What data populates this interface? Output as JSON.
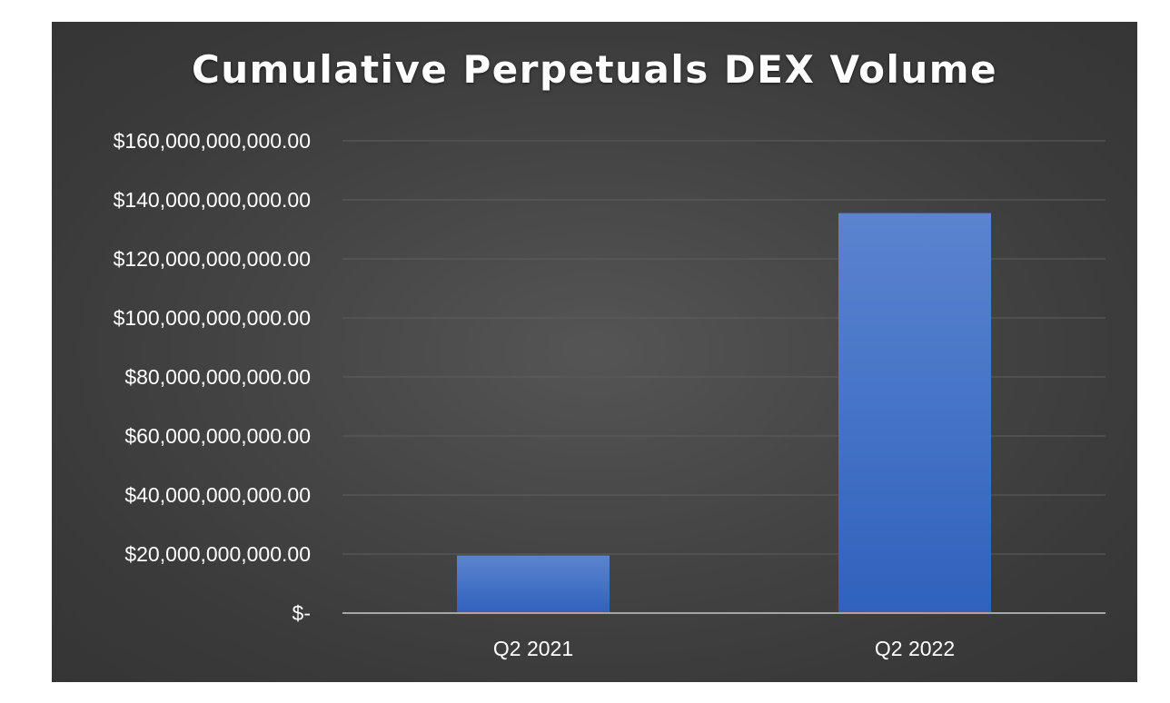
{
  "chart_data": {
    "type": "bar",
    "title": "Cumulative Perpetuals DEX Volume",
    "xlabel": "",
    "ylabel": "",
    "categories": [
      "Q2 2021",
      "Q2 2022"
    ],
    "values": [
      19500000000,
      135500000000
    ],
    "ylim": [
      0,
      160000000000
    ],
    "yticks": [
      0,
      20000000000,
      40000000000,
      60000000000,
      80000000000,
      100000000000,
      120000000000,
      140000000000,
      160000000000
    ],
    "ytick_labels": [
      "$-",
      "$20,000,000,000.00",
      "$40,000,000,000.00",
      "$60,000,000,000.00",
      "$80,000,000,000.00",
      "$100,000,000,000.00",
      "$120,000,000,000.00",
      "$140,000,000,000.00",
      "$160,000,000,000.00"
    ],
    "grid": true,
    "legend": "none",
    "colors": {
      "bar_top": "#5b84cf",
      "bar_bottom": "#2f62bd",
      "gridline": "#5e5e5e",
      "axis": "#a6a6a6",
      "background": "#444444",
      "text": "#ffffff"
    }
  }
}
